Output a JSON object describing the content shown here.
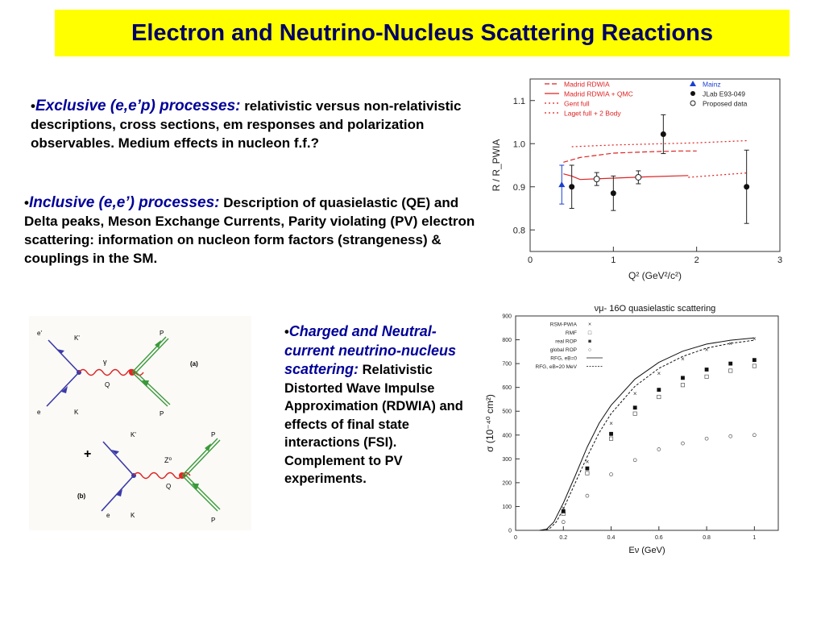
{
  "title": "Electron and Neutrino-Nucleus Scattering Reactions",
  "bullets": [
    {
      "head": "Exclusive (e,e’p) processes:",
      "body": " relativistic versus non-relativistic descriptions, cross sections, em responses and polarization observables. Medium effects in nucleon f.f.?"
    },
    {
      "head": "Inclusive (e,e’) processes:",
      "body": " Description of quasielastic (QE) and Delta peaks, Meson Exchange Currents, Parity violating (PV) electron scattering: information on nucleon form factors (strangeness) & couplings in the SM."
    },
    {
      "head": "Charged and Neutral-current neutrino-nucleus scattering:",
      "body": " Relativistic Distorted Wave Impulse Approximation (RDWIA) and effects of final state interactions (FSI). Complement to PV experiments."
    }
  ],
  "colors": {
    "title_bg": "#ffff00",
    "title_text": "#000066",
    "heading_text": "#000099",
    "theory_red": "#dd2222",
    "mainz_blue": "#1a3fd0"
  },
  "feynman": {
    "diagram_a": {
      "e_in": "e",
      "e_out": "e'",
      "K_in": "K",
      "K_out": "K'",
      "boson": "γ",
      "Q": "Q",
      "Pi": "P",
      "Pf": "P",
      "tag": "(a)"
    },
    "diagram_b": {
      "e_in": "e",
      "K_in": "K",
      "K_out": "K'",
      "boson": "Z⁰",
      "Q": "Q",
      "Pi": "P",
      "Pf": "P",
      "tag": "(b)"
    },
    "plus": "+"
  },
  "chart_data": [
    {
      "type": "scatter",
      "title": "",
      "xlabel": "Q² (GeV²/c²)",
      "ylabel": "R / R_PWIA",
      "xlim": [
        0,
        3
      ],
      "ylim": [
        0.75,
        1.15
      ],
      "xticks": [
        "0",
        "1",
        "2",
        "3"
      ],
      "yticks": [
        "0.8",
        "0.9",
        "1.0",
        "1.1"
      ],
      "legend_position": "top",
      "legend_lines": [
        "Madrid RDWIA",
        "Madrid RDWIA + QMC",
        "Gent full",
        "Laget full + 2 Body"
      ],
      "legend_points": [
        "Mainz",
        "JLab E93-049",
        "Proposed data"
      ],
      "curves": [
        {
          "name": "Madrid RDWIA",
          "style": "dashed",
          "x": [
            0.4,
            0.6,
            1.0,
            1.4,
            1.8,
            2.0
          ],
          "y": [
            0.957,
            0.968,
            0.978,
            0.981,
            0.983,
            0.983
          ]
        },
        {
          "name": "Madrid RDWIA + QMC",
          "style": "solid",
          "x": [
            0.4,
            0.5,
            0.6,
            1.0,
            1.4,
            1.9
          ],
          "y": [
            0.93,
            0.925,
            0.917,
            0.92,
            0.923,
            0.926
          ]
        },
        {
          "name": "Gent full",
          "style": "dotted",
          "x": [
            0.5,
            1.0,
            2.0,
            2.6
          ],
          "y": [
            0.993,
            0.997,
            1.002,
            1.007
          ]
        },
        {
          "name": "Laget full + 2 Body",
          "style": "dotted",
          "x": [
            1.9,
            2.6
          ],
          "y": [
            0.922,
            0.932
          ]
        }
      ],
      "points": [
        {
          "series": "Mainz",
          "marker": "triangle",
          "x": 0.38,
          "y": 0.905,
          "err": 0.045
        },
        {
          "series": "JLab E93-049",
          "marker": "filled-circle",
          "x": 0.5,
          "y": 0.9,
          "err": 0.05
        },
        {
          "series": "JLab E93-049",
          "marker": "filled-circle",
          "x": 1.0,
          "y": 0.885,
          "err": 0.04
        },
        {
          "series": "JLab E93-049",
          "marker": "filled-circle",
          "x": 1.6,
          "y": 1.022,
          "err": 0.045
        },
        {
          "series": "JLab E93-049",
          "marker": "filled-circle",
          "x": 2.6,
          "y": 0.9,
          "err": 0.085
        },
        {
          "series": "Proposed data",
          "marker": "open-circle",
          "x": 0.8,
          "y": 0.918,
          "err": 0.015
        },
        {
          "series": "Proposed data",
          "marker": "open-circle",
          "x": 1.3,
          "y": 0.922,
          "err": 0.015
        }
      ]
    },
    {
      "type": "line",
      "title": "νμ- 16O quasielastic scattering",
      "xlabel": "Eν (GeV)",
      "ylabel": "σ (10⁻⁴⁰ cm²)",
      "xlim": [
        0,
        1.1
      ],
      "ylim": [
        0,
        900
      ],
      "xticks": [
        "0",
        "0.2",
        "0.4",
        "0.6",
        "0.8",
        "1"
      ],
      "yticks": [
        "0",
        "100",
        "200",
        "300",
        "400",
        "500",
        "600",
        "700",
        "800",
        "900"
      ],
      "legend_position": "top-left",
      "legend": [
        "RSM-PWIA",
        "RMF",
        "real ROP",
        "global ROP",
        "RFG, eB=0",
        "RFG, eB=20 MeV"
      ],
      "legend_markers": [
        "×",
        "□",
        "■",
        "○",
        "——",
        "-------"
      ],
      "x": [
        0.2,
        0.3,
        0.4,
        0.5,
        0.6,
        0.7,
        0.8,
        0.9,
        1.0
      ],
      "series": [
        {
          "name": "RSM-PWIA",
          "marker": "x",
          "values": [
            95,
            290,
            450,
            575,
            660,
            720,
            760,
            785,
            805
          ]
        },
        {
          "name": "RMF",
          "marker": "open-square",
          "values": [
            70,
            240,
            385,
            490,
            560,
            610,
            645,
            670,
            690
          ]
        },
        {
          "name": "real ROP",
          "marker": "filled-square",
          "values": [
            80,
            260,
            405,
            515,
            590,
            640,
            675,
            700,
            715
          ]
        },
        {
          "name": "global ROP",
          "marker": "open-circle",
          "values": [
            35,
            145,
            235,
            295,
            340,
            365,
            385,
            395,
            400
          ]
        }
      ],
      "curves": [
        {
          "name": "RFG, eB=0",
          "style": "solid",
          "x": [
            0.1,
            0.13,
            0.16,
            0.2,
            0.25,
            0.3,
            0.35,
            0.4,
            0.5,
            0.6,
            0.7,
            0.8,
            0.9,
            1.0
          ],
          "y": [
            0,
            5,
            35,
            115,
            230,
            350,
            450,
            525,
            635,
            705,
            752,
            782,
            798,
            808
          ]
        },
        {
          "name": "RFG, eB=20 MeV",
          "style": "dashed",
          "x": [
            0.11,
            0.14,
            0.17,
            0.2,
            0.25,
            0.3,
            0.35,
            0.4,
            0.5,
            0.6,
            0.7,
            0.8,
            0.9,
            1.0
          ],
          "y": [
            0,
            5,
            35,
            90,
            200,
            310,
            410,
            490,
            605,
            680,
            730,
            765,
            785,
            798
          ]
        }
      ]
    }
  ]
}
